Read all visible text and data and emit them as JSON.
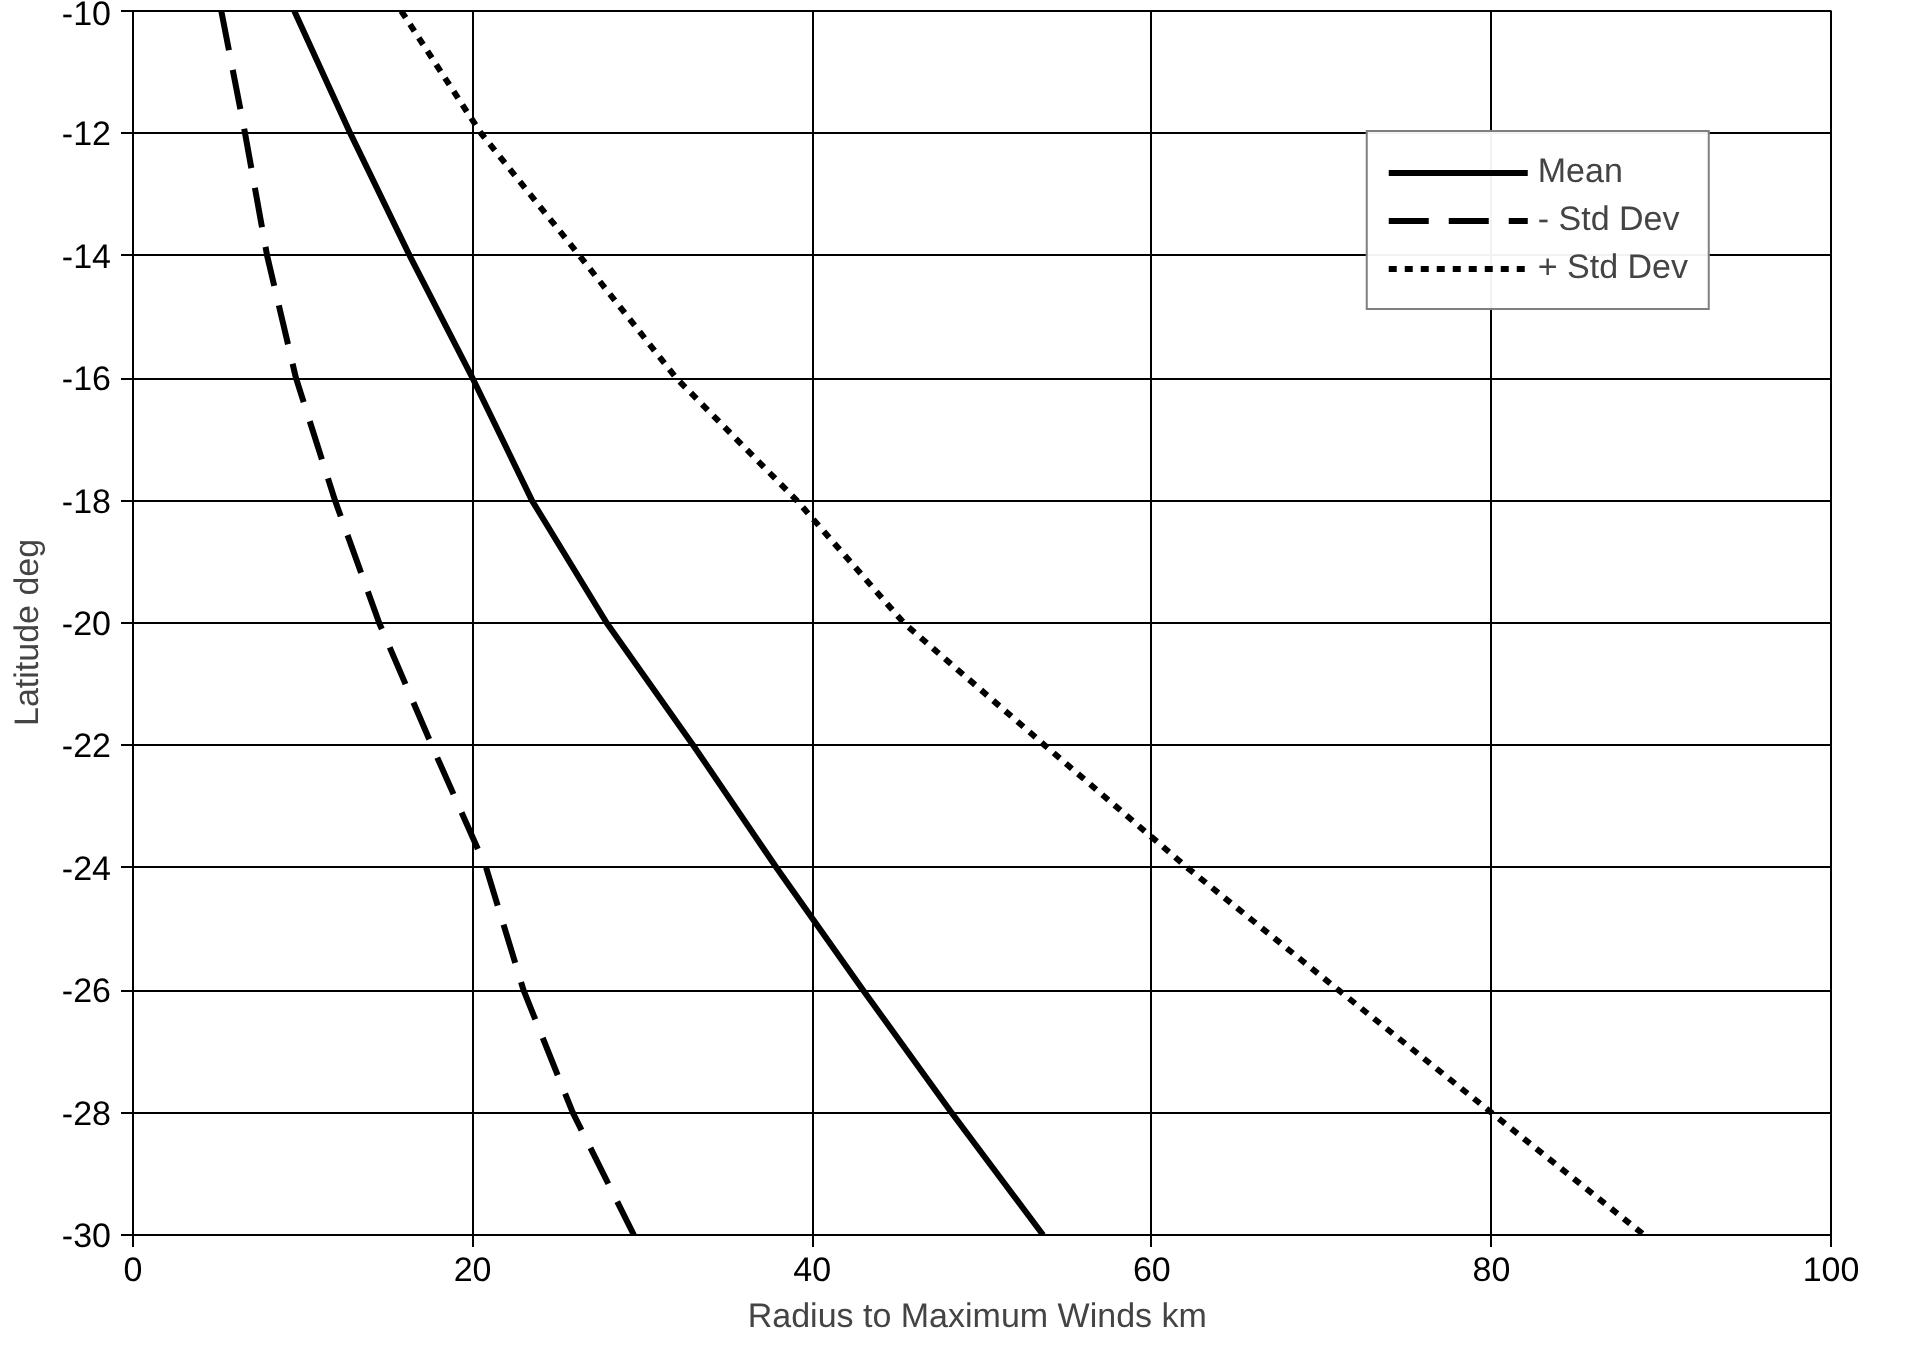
{
  "chart_data": {
    "type": "line",
    "xlabel": "Radius to Maximum Winds  km",
    "ylabel": "Latitude   deg",
    "xlim": [
      0,
      100
    ],
    "xticks": [
      0,
      20,
      40,
      60,
      80,
      100
    ],
    "ylim": [
      -30,
      -10
    ],
    "yticks": [
      -30,
      -28,
      -26,
      -24,
      -22,
      -20,
      -18,
      -16,
      -14,
      -12,
      -10
    ],
    "grid": true,
    "legend": "top right",
    "marker": "none",
    "series": [
      {
        "name": "Mean",
        "color": "#000000",
        "line_style": "solid",
        "x": [
          9.5,
          12.8,
          16.3,
          20,
          23.5,
          27.9,
          33,
          37.9,
          43,
          48.2,
          53.6
        ],
        "values": [
          -10,
          -12,
          -14,
          -16,
          -18,
          -20,
          -22,
          -24,
          -26,
          -28,
          -30
        ]
      },
      {
        "name": "- Std Dev",
        "color": "#000000",
        "line_style": "dashed",
        "x": [
          5.2,
          6.6,
          7.9,
          9.6,
          11.9,
          14.5,
          17.6,
          20.8,
          23,
          25.9,
          29.5
        ],
        "values": [
          -10,
          -12,
          -14,
          -16,
          -18,
          -20,
          -22,
          -24,
          -26,
          -28,
          -30
        ]
      },
      {
        "name": "+ Std Dev",
        "color": "#000000",
        "line_style": "dotted",
        "x": [
          15.8,
          20.5,
          26.3,
          32,
          39.1,
          45.4,
          53.7,
          62.1,
          71,
          80,
          89
        ],
        "values": [
          -10,
          -12,
          -14,
          -16,
          -18,
          -20,
          -22,
          -24,
          -26,
          -28,
          -30
        ]
      }
    ]
  }
}
